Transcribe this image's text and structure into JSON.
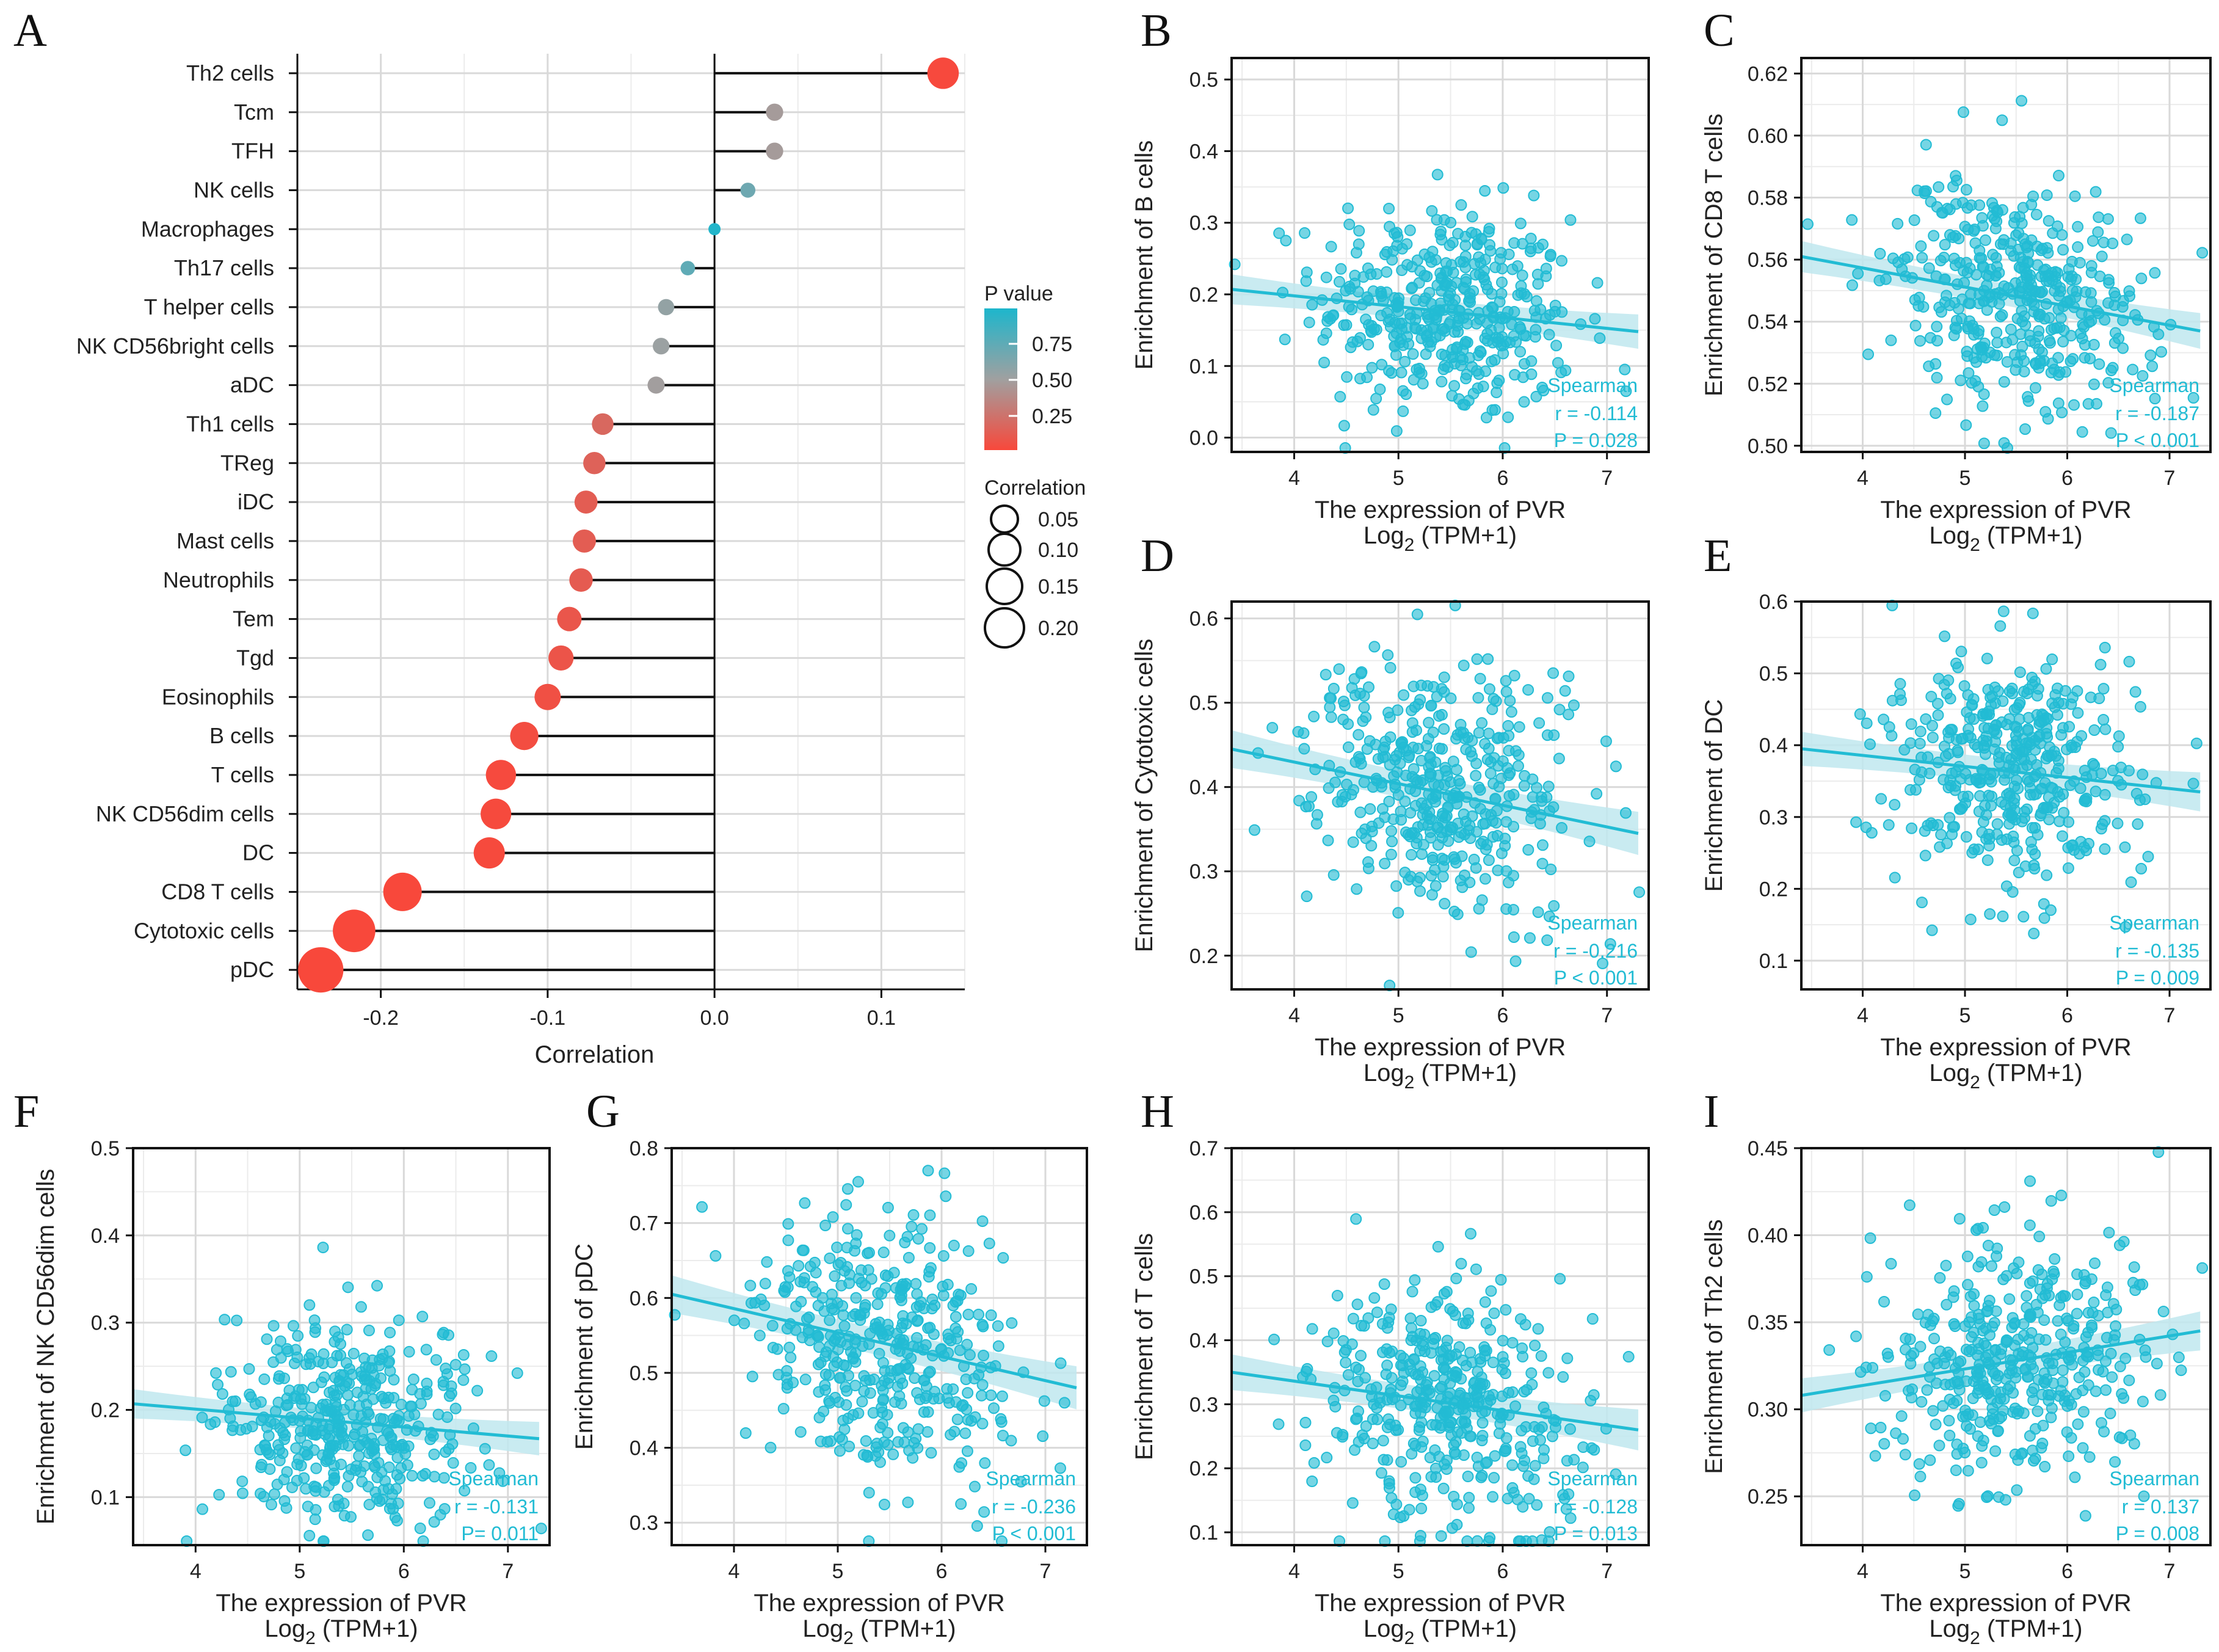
{
  "chart_data": [
    {
      "panel": "A",
      "type": "lollipop",
      "xlabel": "Correlation",
      "xlim": [
        -0.25,
        0.15
      ],
      "xticks": [
        -0.2,
        -0.1,
        0.0,
        0.1
      ],
      "xtick_labels": [
        "-0.2",
        "-0.1",
        "0.0",
        "0.1"
      ],
      "categories": [
        "Th2 cells",
        "Tcm",
        "TFH",
        "NK cells",
        "Macrophages",
        "Th17 cells",
        "T helper cells",
        "NK CD56bright cells",
        "aDC",
        "Th1 cells",
        "TReg",
        "iDC",
        "Mast cells",
        "Neutrophils",
        "Tem",
        "Tgd",
        "Eosinophils",
        "B cells",
        "T cells",
        "NK CD56dim cells",
        "DC",
        "CD8 T cells",
        "Cytotoxic cells",
        "pDC"
      ],
      "correlation": [
        0.137,
        0.036,
        0.036,
        0.02,
        0.0,
        -0.016,
        -0.029,
        -0.032,
        -0.035,
        -0.067,
        -0.072,
        -0.077,
        -0.078,
        -0.08,
        -0.087,
        -0.092,
        -0.1,
        -0.114,
        -0.128,
        -0.131,
        -0.135,
        -0.187,
        -0.216,
        -0.236
      ],
      "p_value": [
        0.008,
        0.47,
        0.47,
        0.69,
        0.98,
        0.75,
        0.55,
        0.52,
        0.49,
        0.18,
        0.15,
        0.12,
        0.12,
        0.11,
        0.08,
        0.07,
        0.045,
        0.028,
        0.013,
        0.011,
        0.009,
        0.001,
        0.001,
        0.001
      ],
      "legend_pvalue": {
        "title": "P value",
        "ticks": [
          "0.75",
          "0.50",
          "0.25"
        ],
        "low_color": "#F8483B",
        "high_color": "#1DB6CC"
      },
      "legend_size": {
        "title": "Correlation",
        "ticks": [
          "0.05",
          "0.10",
          "0.15",
          "0.20"
        ]
      }
    },
    {
      "panel": "B",
      "type": "scatter",
      "ylabel": "Enrichment of B cells",
      "xlabel_line1": "The expression of PVR",
      "xlabel_line2_pre": "Log",
      "xlabel_line2_sub": "2",
      "xlabel_line2_post": " (TPM+1)",
      "xlim": [
        3.4,
        7.4
      ],
      "xticks": [
        4,
        5,
        6,
        7
      ],
      "ylim": [
        -0.02,
        0.53
      ],
      "yticks": [
        0.0,
        0.1,
        0.2,
        0.3,
        0.4,
        0.5
      ],
      "ytick_labels": [
        "0.0",
        "0.1",
        "0.2",
        "0.3",
        "0.4",
        "0.5"
      ],
      "center_y": 0.18,
      "spread_y": 0.075,
      "fit_line": [
        [
          3.4,
          0.207
        ],
        [
          7.3,
          0.148
        ]
      ],
      "stat_method": "Spearman",
      "stat_r": "r = -0.114",
      "stat_p": "P = 0.028"
    },
    {
      "panel": "C",
      "type": "scatter",
      "ylabel": "Enrichment of CD8 T cells",
      "xlabel_line1": "The expression of PVR",
      "xlabel_line2_pre": "Log",
      "xlabel_line2_sub": "2",
      "xlabel_line2_post": " (TPM+1)",
      "xlim": [
        3.4,
        7.4
      ],
      "xticks": [
        4,
        5,
        6,
        7
      ],
      "ylim": [
        0.498,
        0.625
      ],
      "yticks": [
        0.5,
        0.52,
        0.54,
        0.56,
        0.58,
        0.6,
        0.62
      ],
      "ytick_labels": [
        "0.50",
        "0.52",
        "0.54",
        "0.56",
        "0.58",
        "0.60",
        "0.62"
      ],
      "center_y": 0.547,
      "spread_y": 0.018,
      "fit_line": [
        [
          3.4,
          0.561
        ],
        [
          7.3,
          0.537
        ]
      ],
      "stat_method": "Spearman",
      "stat_r": "r = -0.187",
      "stat_p": "P < 0.001"
    },
    {
      "panel": "D",
      "type": "scatter",
      "ylabel": "Enrichment of Cytotoxic cells",
      "xlabel_line1": "The expression of PVR",
      "xlabel_line2_pre": "Log",
      "xlabel_line2_sub": "2",
      "xlabel_line2_post": " (TPM+1)",
      "xlim": [
        3.4,
        7.4
      ],
      "xticks": [
        4,
        5,
        6,
        7
      ],
      "ylim": [
        0.16,
        0.62
      ],
      "yticks": [
        0.2,
        0.3,
        0.4,
        0.5,
        0.6
      ],
      "ytick_labels": [
        "0.2",
        "0.3",
        "0.4",
        "0.5",
        "0.6"
      ],
      "center_y": 0.39,
      "spread_y": 0.08,
      "fit_line": [
        [
          3.4,
          0.445
        ],
        [
          7.3,
          0.345
        ]
      ],
      "stat_method": "Spearman",
      "stat_r": "r = -0.216",
      "stat_p": "P < 0.001"
    },
    {
      "panel": "E",
      "type": "scatter",
      "ylabel": "Enrichment of DC",
      "xlabel_line1": "The expression of PVR",
      "xlabel_line2_pre": "Log",
      "xlabel_line2_sub": "2",
      "xlabel_line2_post": " (TPM+1)",
      "xlim": [
        3.4,
        7.4
      ],
      "xticks": [
        4,
        5,
        6,
        7
      ],
      "ylim": [
        0.06,
        0.6
      ],
      "yticks": [
        0.1,
        0.2,
        0.3,
        0.4,
        0.5,
        0.6
      ],
      "ytick_labels": [
        "0.1",
        "0.2",
        "0.3",
        "0.4",
        "0.5",
        "0.6"
      ],
      "center_y": 0.36,
      "spread_y": 0.085,
      "fit_line": [
        [
          3.4,
          0.395
        ],
        [
          7.3,
          0.335
        ]
      ],
      "stat_method": "Spearman",
      "stat_r": "r = -0.135",
      "stat_p": "P = 0.009"
    },
    {
      "panel": "F",
      "type": "scatter",
      "ylabel": "Enrichment of NK CD56dim cells",
      "xlabel_line1": "The expression of PVR",
      "xlabel_line2_pre": "Log",
      "xlabel_line2_sub": "2",
      "xlabel_line2_post": " (TPM+1)",
      "xlim": [
        3.4,
        7.4
      ],
      "xticks": [
        4,
        5,
        6,
        7
      ],
      "ylim": [
        0.045,
        0.5
      ],
      "yticks": [
        0.1,
        0.2,
        0.3,
        0.4,
        0.5
      ],
      "ytick_labels": [
        "0.1",
        "0.2",
        "0.3",
        "0.4",
        "0.5"
      ],
      "center_y": 0.185,
      "spread_y": 0.06,
      "fit_line": [
        [
          3.4,
          0.207
        ],
        [
          7.3,
          0.167
        ]
      ],
      "stat_method": "Spearman",
      "stat_r": "r = -0.131",
      "stat_p": "P= 0.011"
    },
    {
      "panel": "G",
      "type": "scatter",
      "ylabel": "Enrichment of pDC",
      "xlabel_line1": "The expression of PVR",
      "xlabel_line2_pre": "Log",
      "xlabel_line2_sub": "2",
      "xlabel_line2_post": " (TPM+1)",
      "xlim": [
        3.4,
        7.4
      ],
      "xticks": [
        4,
        5,
        6,
        7
      ],
      "ylim": [
        0.27,
        0.8
      ],
      "yticks": [
        0.3,
        0.4,
        0.5,
        0.6,
        0.7,
        0.8
      ],
      "ytick_labels": [
        "0.3",
        "0.4",
        "0.5",
        "0.6",
        "0.7",
        "0.8"
      ],
      "center_y": 0.54,
      "spread_y": 0.09,
      "fit_line": [
        [
          3.4,
          0.605
        ],
        [
          7.3,
          0.48
        ]
      ],
      "stat_method": "Spearman",
      "stat_r": "r = -0.236",
      "stat_p": "P < 0.001"
    },
    {
      "panel": "H",
      "type": "scatter",
      "ylabel": "Enrichment of T cells",
      "xlabel_line1": "The expression of PVR",
      "xlabel_line2_pre": "Log",
      "xlabel_line2_sub": "2",
      "xlabel_line2_post": " (TPM+1)",
      "xlim": [
        3.4,
        7.4
      ],
      "xticks": [
        4,
        5,
        6,
        7
      ],
      "ylim": [
        0.08,
        0.7
      ],
      "yticks": [
        0.1,
        0.2,
        0.3,
        0.4,
        0.5,
        0.6,
        0.7
      ],
      "ytick_labels": [
        "0.1",
        "0.2",
        "0.3",
        "0.4",
        "0.5",
        "0.6",
        "0.7"
      ],
      "center_y": 0.3,
      "spread_y": 0.1,
      "fit_line": [
        [
          3.4,
          0.35
        ],
        [
          7.3,
          0.26
        ]
      ],
      "stat_method": "Spearman",
      "stat_r": "r = -0.128",
      "stat_p": "P = 0.013"
    },
    {
      "panel": "I",
      "type": "scatter",
      "ylabel": "Enrichment of Th2 cells",
      "xlabel_line1": "The expression of PVR",
      "xlabel_line2_pre": "Log",
      "xlabel_line2_sub": "2",
      "xlabel_line2_post": " (TPM+1)",
      "xlim": [
        3.4,
        7.4
      ],
      "xticks": [
        4,
        5,
        6,
        7
      ],
      "ylim": [
        0.222,
        0.45
      ],
      "yticks": [
        0.25,
        0.3,
        0.35,
        0.4,
        0.45
      ],
      "ytick_labels": [
        "0.25",
        "0.30",
        "0.35",
        "0.40",
        "0.45"
      ],
      "center_y": 0.325,
      "spread_y": 0.035,
      "fit_line": [
        [
          3.4,
          0.308
        ],
        [
          7.3,
          0.345
        ]
      ],
      "stat_method": "Spearman",
      "stat_r": "r = 0.137",
      "stat_p": "P = 0.008"
    }
  ],
  "colors": {
    "point": "#22BCD4",
    "band": "#BFE8EF",
    "stat_text": "#22BCD4",
    "axis": "#111111",
    "grid": "#D9D9D9"
  }
}
